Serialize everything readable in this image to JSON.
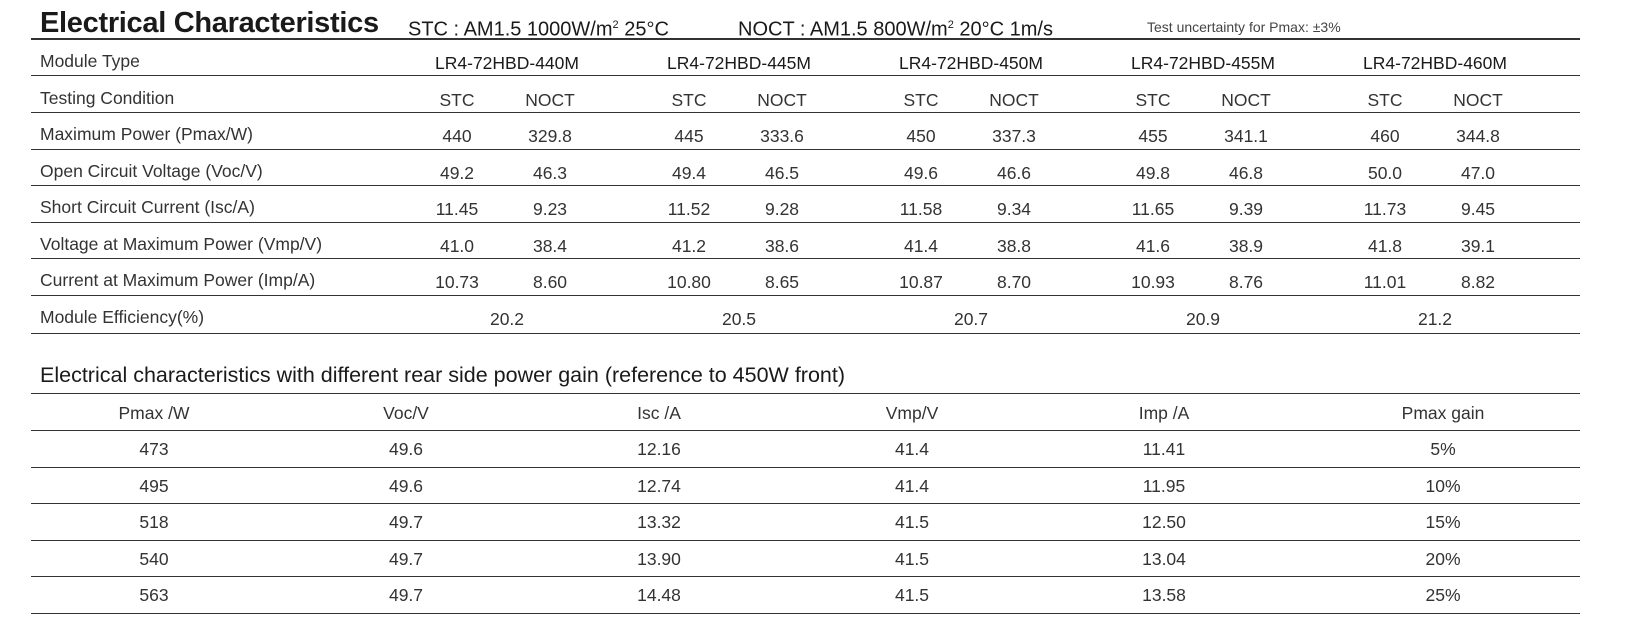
{
  "header": {
    "title": "Electrical Characteristics",
    "stc_prefix": "STC : AM1.5  1000W/m",
    "stc_suffix": "  25°C",
    "noct_prefix": "NOCT : AM1.5  800W/m",
    "noct_suffix": "  20°C  1m/s",
    "superscript": "2",
    "uncertainty": "Test uncertainty for Pmax: ±3%"
  },
  "table1": {
    "row_labels": {
      "module_type": "Module Type",
      "testing_condition": "Testing Condition",
      "pmax": "Maximum Power (Pmax/W)",
      "voc": "Open Circuit Voltage (Voc/V)",
      "isc": "Short Circuit Current (Isc/A)",
      "vmp": "Voltage at Maximum Power (Vmp/V)",
      "imp": "Current at Maximum Power (Imp/A)",
      "eff": "Module Efficiency(%)"
    },
    "condition_labels": {
      "stc": "STC",
      "noct": "NOCT"
    },
    "modules": [
      {
        "type": "LR4-72HBD-440M",
        "pmax": {
          "stc": "440",
          "noct": "329.8"
        },
        "voc": {
          "stc": "49.2",
          "noct": "46.3"
        },
        "isc": {
          "stc": "11.45",
          "noct": "9.23"
        },
        "vmp": {
          "stc": "41.0",
          "noct": "38.4"
        },
        "imp": {
          "stc": "10.73",
          "noct": "8.60"
        },
        "eff": "20.2"
      },
      {
        "type": "LR4-72HBD-445M",
        "pmax": {
          "stc": "445",
          "noct": "333.6"
        },
        "voc": {
          "stc": "49.4",
          "noct": "46.5"
        },
        "isc": {
          "stc": "11.52",
          "noct": "9.28"
        },
        "vmp": {
          "stc": "41.2",
          "noct": "38.6"
        },
        "imp": {
          "stc": "10.80",
          "noct": "8.65"
        },
        "eff": "20.5"
      },
      {
        "type": "LR4-72HBD-450M",
        "pmax": {
          "stc": "450",
          "noct": "337.3"
        },
        "voc": {
          "stc": "49.6",
          "noct": "46.6"
        },
        "isc": {
          "stc": "11.58",
          "noct": "9.34"
        },
        "vmp": {
          "stc": "41.4",
          "noct": "38.8"
        },
        "imp": {
          "stc": "10.87",
          "noct": "8.70"
        },
        "eff": "20.7"
      },
      {
        "type": "LR4-72HBD-455M",
        "pmax": {
          "stc": "455",
          "noct": "341.1"
        },
        "voc": {
          "stc": "49.8",
          "noct": "46.8"
        },
        "isc": {
          "stc": "11.65",
          "noct": "9.39"
        },
        "vmp": {
          "stc": "41.6",
          "noct": "38.9"
        },
        "imp": {
          "stc": "10.93",
          "noct": "8.76"
        },
        "eff": "20.9"
      },
      {
        "type": "LR4-72HBD-460M",
        "pmax": {
          "stc": "460",
          "noct": "344.8"
        },
        "voc": {
          "stc": "50.0",
          "noct": "47.0"
        },
        "isc": {
          "stc": "11.73",
          "noct": "9.45"
        },
        "vmp": {
          "stc": "41.8",
          "noct": "39.1"
        },
        "imp": {
          "stc": "11.01",
          "noct": "8.82"
        },
        "eff": "21.2"
      }
    ]
  },
  "table2": {
    "title": "Electrical characteristics with different rear side power gain (reference to 450W front)",
    "headers": [
      "Pmax /W",
      "Voc/V",
      "Isc /A",
      "Vmp/V",
      "Imp /A",
      "Pmax gain"
    ],
    "rows": [
      [
        "473",
        "49.6",
        "12.16",
        "41.4",
        "11.41",
        "5%"
      ],
      [
        "495",
        "49.6",
        "12.74",
        "41.4",
        "11.95",
        "10%"
      ],
      [
        "518",
        "49.7",
        "13.32",
        "41.5",
        "12.50",
        "15%"
      ],
      [
        "540",
        "49.7",
        "13.90",
        "41.5",
        "13.04",
        "20%"
      ],
      [
        "563",
        "49.7",
        "14.48",
        "41.5",
        "13.58",
        "25%"
      ]
    ]
  }
}
